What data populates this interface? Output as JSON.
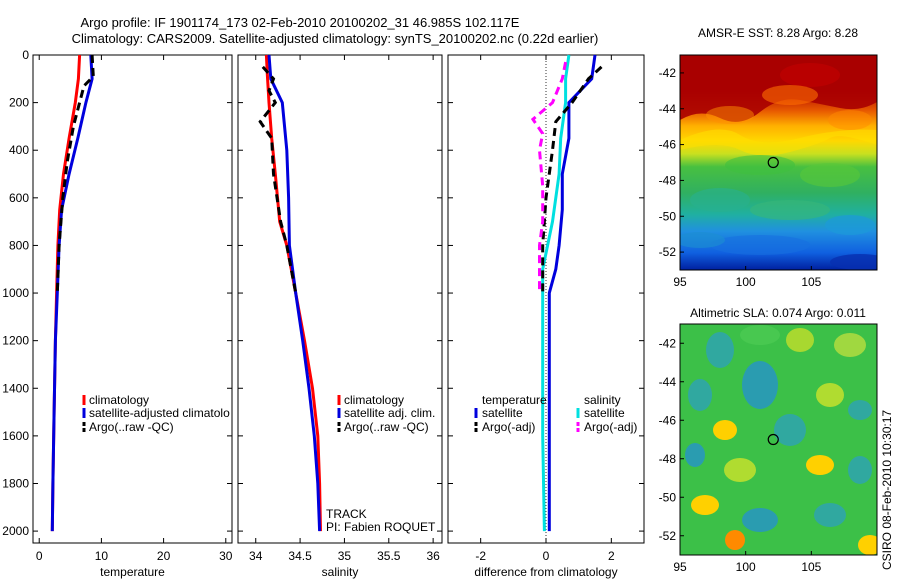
{
  "title": {
    "line1": "Argo profile: IF 1901174_173 02-Feb-2010 20100202_31 46.985S 102.117E",
    "line2": "Climatology: CARS2009. Satellite-adjusted climatology: synTS_20100202.nc (0.22d earlier)"
  },
  "side_text": "CSIRO 08-Feb-2010 10:30:17",
  "chart_data": [
    {
      "type": "line",
      "xlabel": "temperature",
      "ylabel": "",
      "xlim": [
        -1,
        31
      ],
      "ylim": [
        2050,
        0
      ],
      "xticks": [
        0,
        10,
        20,
        30
      ],
      "yticks": [
        0,
        200,
        400,
        600,
        800,
        1000,
        1200,
        1400,
        1600,
        1800,
        2000
      ],
      "legend": [
        "climatology",
        "satellite-adjusted climatolo",
        "Argo(..raw -QC)"
      ],
      "legend_position": "lower-right",
      "series": [
        {
          "name": "climatology",
          "color": "#ff0000",
          "style": "solid",
          "points": [
            [
              6.5,
              0
            ],
            [
              6.3,
              100
            ],
            [
              5.8,
              200
            ],
            [
              4.8,
              350
            ],
            [
              3.9,
              500
            ],
            [
              3.3,
              650
            ],
            [
              3.0,
              800
            ],
            [
              2.8,
              1000
            ],
            [
              2.6,
              1200
            ],
            [
              2.4,
              1500
            ],
            [
              2.2,
              1800
            ],
            [
              2.1,
              2000
            ]
          ]
        },
        {
          "name": "satellite-adjusted climatolo",
          "color": "#0000dd",
          "style": "solid",
          "points": [
            [
              8.3,
              0
            ],
            [
              8.5,
              100
            ],
            [
              7.5,
              200
            ],
            [
              6.2,
              350
            ],
            [
              4.8,
              500
            ],
            [
              3.6,
              650
            ],
            [
              3.2,
              800
            ],
            [
              2.9,
              1000
            ],
            [
              2.6,
              1200
            ],
            [
              2.4,
              1500
            ],
            [
              2.2,
              1800
            ],
            [
              2.1,
              2000
            ]
          ]
        },
        {
          "name": "Argo(..raw -QC)",
          "color": "#000000",
          "style": "dashed",
          "points": [
            [
              8.5,
              0
            ],
            [
              8.7,
              90
            ],
            [
              7.2,
              130
            ],
            [
              6.5,
              200
            ],
            [
              5.5,
              300
            ],
            [
              4.5,
              450
            ],
            [
              3.8,
              600
            ],
            [
              3.2,
              800
            ],
            [
              2.9,
              1000
            ]
          ]
        }
      ]
    },
    {
      "type": "line",
      "xlabel": "salinity",
      "ylabel": "",
      "xlim": [
        33.8,
        36.1
      ],
      "ylim": [
        2050,
        0
      ],
      "xticks": [
        34,
        34.5,
        35,
        35.5,
        36
      ],
      "legend": [
        "climatology",
        "satellite adj. clim.",
        "Argo(..raw -QC)"
      ],
      "legend_position": "lower-right",
      "annotations": [
        "TRACK",
        "PI: Fabien ROQUET"
      ],
      "series": [
        {
          "name": "climatology",
          "color": "#ff0000",
          "style": "solid",
          "points": [
            [
              34.12,
              0
            ],
            [
              34.13,
              80
            ],
            [
              34.15,
              200
            ],
            [
              34.18,
              350
            ],
            [
              34.22,
              500
            ],
            [
              34.27,
              700
            ],
            [
              34.35,
              800
            ],
            [
              34.45,
              1000
            ],
            [
              34.55,
              1200
            ],
            [
              34.64,
              1400
            ],
            [
              34.7,
              1600
            ],
            [
              34.72,
              1800
            ],
            [
              34.73,
              2000
            ]
          ]
        },
        {
          "name": "satellite adj. clim.",
          "color": "#0000dd",
          "style": "solid",
          "points": [
            [
              34.15,
              0
            ],
            [
              34.17,
              100
            ],
            [
              34.3,
              200
            ],
            [
              34.35,
              400
            ],
            [
              34.37,
              600
            ],
            [
              34.38,
              800
            ],
            [
              34.45,
              1000
            ],
            [
              34.53,
              1200
            ],
            [
              34.6,
              1400
            ],
            [
              34.66,
              1600
            ],
            [
              34.7,
              1800
            ],
            [
              34.72,
              2000
            ]
          ]
        },
        {
          "name": "Argo(..raw -QC)",
          "color": "#000000",
          "style": "dashed",
          "points": [
            [
              34.08,
              50
            ],
            [
              34.2,
              100
            ],
            [
              34.15,
              150
            ],
            [
              34.22,
              200
            ],
            [
              34.05,
              280
            ],
            [
              34.18,
              350
            ],
            [
              34.2,
              500
            ],
            [
              34.28,
              700
            ],
            [
              34.35,
              800
            ],
            [
              34.45,
              1000
            ]
          ]
        }
      ]
    },
    {
      "type": "line",
      "xlabel": "difference from climatology",
      "ylabel": "",
      "xlim": [
        -3,
        3
      ],
      "ylim": [
        2050,
        0
      ],
      "xticks": [
        -2,
        0,
        2
      ],
      "legend_title_left": "temperature",
      "legend_title_right": "salinity",
      "legend": [
        "satellite",
        "Argo(-adj)",
        "satellite",
        "Argo(-adj)"
      ],
      "legend_position": "lower-center",
      "series": [
        {
          "name": "satellite",
          "group": "temperature",
          "color": "#0000dd",
          "style": "solid",
          "points": [
            [
              1.5,
              0
            ],
            [
              1.4,
              100
            ],
            [
              0.7,
              200
            ],
            [
              0.7,
              350
            ],
            [
              0.5,
              500
            ],
            [
              0.5,
              650
            ],
            [
              0.4,
              800
            ],
            [
              0.3,
              900
            ],
            [
              0.1,
              1000
            ],
            [
              0.1,
              1500
            ],
            [
              0.1,
              2000
            ]
          ]
        },
        {
          "name": "satellite",
          "group": "salinity",
          "color": "#00e0e0",
          "style": "solid",
          "points": [
            [
              0.7,
              0
            ],
            [
              0.6,
              100
            ],
            [
              0.6,
              200
            ],
            [
              0.45,
              350
            ],
            [
              0.4,
              500
            ],
            [
              0.2,
              700
            ],
            [
              -0.1,
              900
            ],
            [
              -0.1,
              1200
            ],
            [
              -0.1,
              1600
            ],
            [
              -0.05,
              2000
            ]
          ]
        },
        {
          "name": "Argo(-adj)",
          "group": "temperature",
          "color": "#000000",
          "style": "dashed",
          "points": [
            [
              1.7,
              50
            ],
            [
              1.3,
              100
            ],
            [
              0.8,
              200
            ],
            [
              0.3,
              280
            ],
            [
              0.2,
              400
            ],
            [
              0,
              600
            ],
            [
              -0.1,
              800
            ],
            [
              -0.1,
              1000
            ]
          ]
        },
        {
          "name": "Argo(-adj)",
          "group": "salinity",
          "color": "#ff00ff",
          "style": "dashed",
          "points": [
            [
              0.6,
              30
            ],
            [
              0.5,
              100
            ],
            [
              0.2,
              200
            ],
            [
              -0.4,
              270
            ],
            [
              -0.1,
              330
            ],
            [
              -0.2,
              400
            ],
            [
              -0.1,
              550
            ],
            [
              -0.1,
              700
            ],
            [
              -0.2,
              800
            ],
            [
              -0.2,
              1000
            ]
          ]
        }
      ]
    },
    {
      "type": "heatmap",
      "title": "AMSR-E SST: 8.28 Argo: 8.28",
      "xlim": [
        95,
        110
      ],
      "ylim": [
        -53,
        -41
      ],
      "xticks": [
        95,
        100,
        105
      ],
      "yticks": [
        -42,
        -44,
        -46,
        -48,
        -50,
        -52
      ],
      "marker": [
        102.1,
        -47.0
      ]
    },
    {
      "type": "heatmap",
      "title": "Altimetric SLA: 0.074 Argo: 0.011",
      "xlim": [
        95,
        110
      ],
      "ylim": [
        -53,
        -41
      ],
      "xticks": [
        95,
        100,
        105
      ],
      "yticks": [
        -42,
        -44,
        -46,
        -48,
        -50,
        -52
      ],
      "marker": [
        102.1,
        -47.0
      ]
    }
  ]
}
